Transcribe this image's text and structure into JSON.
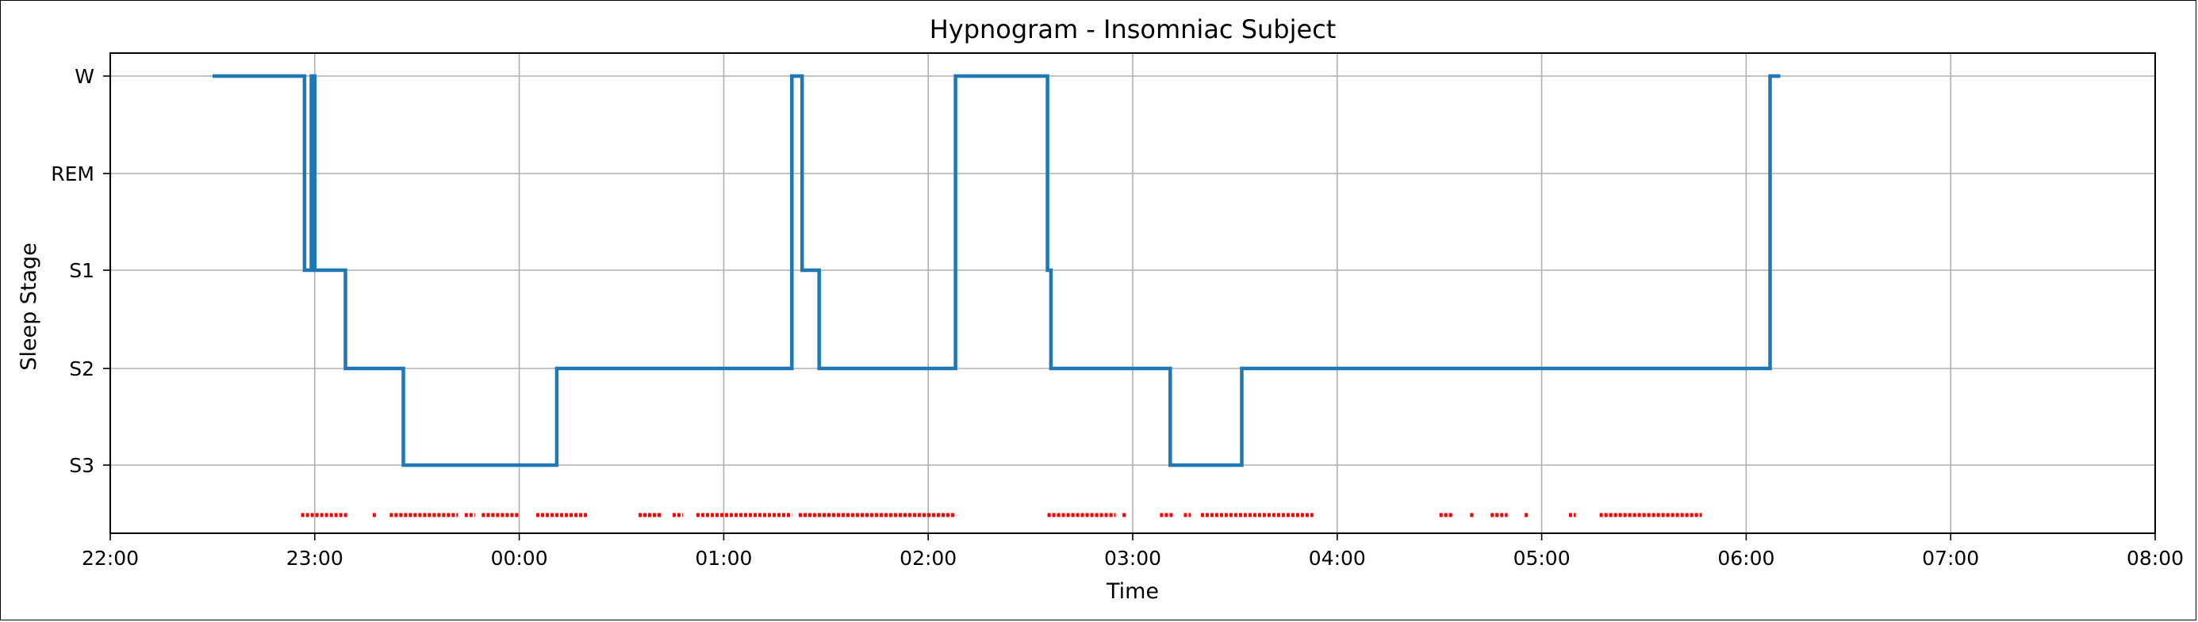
{
  "chart_data": {
    "type": "line",
    "title": "Hypnogram - Insomniac Subject",
    "xlabel": "Time",
    "ylabel": "Sleep Stage",
    "grid": true,
    "xlim": [
      "22:00",
      "08:00"
    ],
    "x_ticks": [
      "22:00",
      "23:00",
      "00:00",
      "01:00",
      "02:00",
      "03:00",
      "04:00",
      "05:00",
      "06:00",
      "07:00",
      "08:00"
    ],
    "y_ticks": [
      "W",
      "REM",
      "S1",
      "S2",
      "S3"
    ],
    "colors": {
      "stage_line": "#1f77b4",
      "markers": "#ff0000",
      "grid": "#b0b0b0"
    },
    "series": [
      {
        "type": "step",
        "points": [
          [
            "22:30",
            "W"
          ],
          [
            "22:57",
            "W"
          ],
          [
            "22:57",
            "S1"
          ],
          [
            "22:59",
            "S1"
          ],
          [
            "22:59",
            "W"
          ],
          [
            "23:00",
            "W"
          ],
          [
            "23:00",
            "S1"
          ],
          [
            "23:09",
            "S1"
          ],
          [
            "23:09",
            "S2"
          ],
          [
            "23:26",
            "S2"
          ],
          [
            "23:26",
            "S3"
          ],
          [
            "00:11",
            "S3"
          ],
          [
            "00:11",
            "S2"
          ],
          [
            "01:20",
            "S2"
          ],
          [
            "01:20",
            "W"
          ],
          [
            "01:23",
            "W"
          ],
          [
            "01:23",
            "S1"
          ],
          [
            "01:28",
            "S1"
          ],
          [
            "01:28",
            "S2"
          ],
          [
            "02:08",
            "S2"
          ],
          [
            "02:08",
            "W"
          ],
          [
            "02:35",
            "W"
          ],
          [
            "02:35",
            "S1"
          ],
          [
            "02:36",
            "S1"
          ],
          [
            "02:36",
            "S2"
          ],
          [
            "03:11",
            "S2"
          ],
          [
            "03:11",
            "S3"
          ],
          [
            "03:32",
            "S3"
          ],
          [
            "03:32",
            "S2"
          ],
          [
            "06:07",
            "S2"
          ],
          [
            "06:07",
            "W"
          ],
          [
            "06:10",
            "W"
          ]
        ]
      },
      {
        "type": "markers",
        "segments": [
          [
            "22:56",
            "23:10"
          ],
          [
            "23:17",
            "23:18"
          ],
          [
            "23:22",
            "23:42"
          ],
          [
            "23:44",
            "23:47"
          ],
          [
            "23:49",
            "24:00"
          ],
          [
            "00:05",
            "00:20"
          ],
          [
            "00:35",
            "00:42"
          ],
          [
            "00:45",
            "00:48"
          ],
          [
            "00:52",
            "01:20"
          ],
          [
            "01:22",
            "02:08"
          ],
          [
            "02:35",
            "02:55"
          ],
          [
            "02:57",
            "02:58"
          ],
          [
            "03:08",
            "03:12"
          ],
          [
            "03:15",
            "03:17"
          ],
          [
            "03:20",
            "03:53"
          ],
          [
            "04:30",
            "04:34"
          ],
          [
            "04:39",
            "04:40"
          ],
          [
            "04:45",
            "04:50"
          ],
          [
            "04:55",
            "04:56"
          ],
          [
            "05:08",
            "05:10"
          ],
          [
            "05:17",
            "05:47"
          ]
        ]
      }
    ]
  }
}
